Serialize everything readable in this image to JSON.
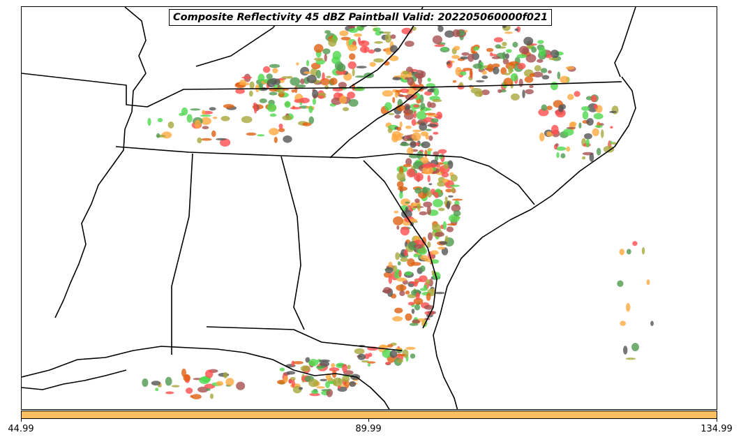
{
  "title": "Composite Reflectivity 45 dBZ Paintball Valid: 202205060000f021",
  "colors": {
    "background": "#ffffff",
    "boundary": "#000000",
    "colorbar_fill": "#ffbf60",
    "members": [
      "#ff4d4d",
      "#4dd84d",
      "#ffa940",
      "#a8a83c",
      "#4f9a4f",
      "#a85050",
      "#555555",
      "#e06010"
    ]
  },
  "colorbar": {
    "ticks": [
      "44.99",
      "89.99",
      "134.99"
    ]
  },
  "map": {
    "region": "Southeastern United States",
    "layer": "state and coastline boundaries",
    "field": "composite reflectivity >= 45 dBZ paintball"
  }
}
